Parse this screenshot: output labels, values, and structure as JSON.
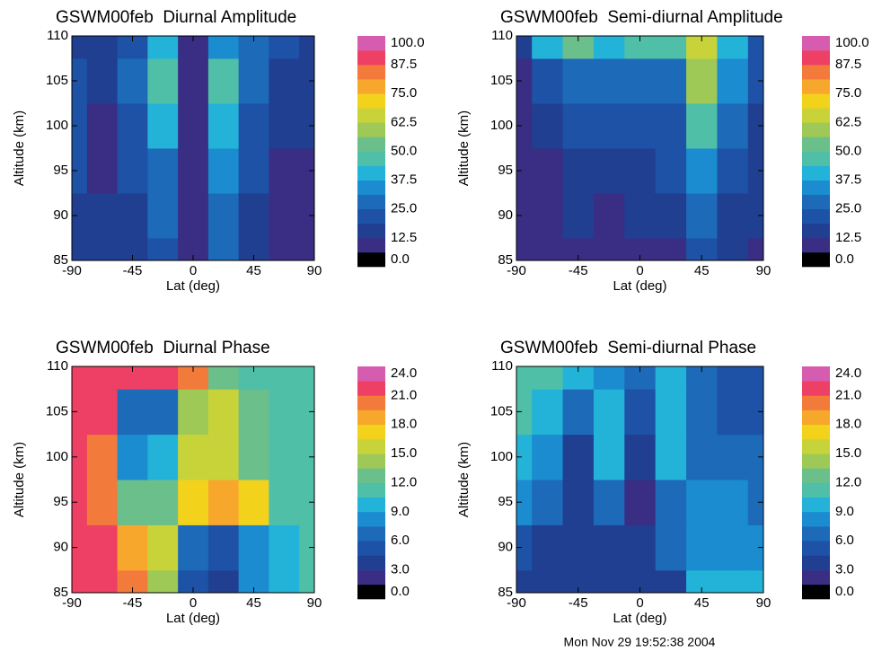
{
  "chart_data": [
    {
      "type": "heatmap",
      "title": "GSWM00feb  Diurnal Amplitude",
      "x_label": "Lat (deg)",
      "y_label": "Altitude (km)",
      "x": [
        -90,
        -67.5,
        -45,
        -22.5,
        0,
        22.5,
        45,
        67.5,
        90
      ],
      "y": [
        85,
        90,
        95,
        100,
        105,
        110
      ],
      "z": [
        [
          18,
          18,
          18,
          22,
          12,
          26,
          18,
          10,
          10
        ],
        [
          18,
          15,
          18,
          25,
          12,
          28,
          18,
          10,
          10
        ],
        [
          20,
          10,
          22,
          30,
          12,
          32,
          20,
          10,
          12
        ],
        [
          20,
          10,
          24,
          38,
          12,
          40,
          22,
          14,
          15
        ],
        [
          20,
          15,
          25,
          45,
          12,
          46,
          25,
          18,
          18
        ],
        [
          18,
          18,
          22,
          38,
          12,
          35,
          25,
          20,
          18
        ]
      ],
      "xlim": [
        -90,
        90
      ],
      "ylim": [
        85,
        110
      ],
      "xticks": [
        -90,
        -45,
        0,
        45,
        90
      ],
      "yticks": [
        85,
        90,
        95,
        100,
        105,
        110
      ],
      "zlim": [
        0,
        100
      ],
      "zticks": [
        {
          "value": 0,
          "label": "0.0"
        },
        12.5,
        {
          "value": 25,
          "label": "25.0"
        },
        37.5,
        {
          "value": 50,
          "label": "50.0"
        },
        62.5,
        {
          "value": 75,
          "label": "75.0"
        },
        87.5,
        {
          "value": 100,
          "label": "100.0"
        }
      ],
      "colors": [
        "#000000",
        "#3a2d84",
        "#203f91",
        "#1d52a6",
        "#1c6ab8",
        "#1a8ccf",
        "#23b3d8",
        "#4fbfa8",
        "#6bbf8a",
        "#9ec957",
        "#c8d33a",
        "#f3d21c",
        "#f7a82c",
        "#f27a3a",
        "#ee3f64",
        "#d65cb0"
      ]
    },
    {
      "type": "heatmap",
      "title": "GSWM00feb  Semi-diurnal Amplitude",
      "x_label": "Lat (deg)",
      "y_label": "Altitude (km)",
      "x": [
        -90,
        -67.5,
        -45,
        -22.5,
        0,
        22.5,
        45,
        67.5,
        90
      ],
      "y": [
        85,
        90,
        95,
        100,
        105,
        110
      ],
      "z": [
        [
          10,
          10,
          10,
          10,
          10,
          12,
          22,
          15,
          12
        ],
        [
          10,
          10,
          14,
          12,
          14,
          16,
          28,
          18,
          14
        ],
        [
          10,
          12,
          16,
          16,
          18,
          20,
          36,
          22,
          16
        ],
        [
          10,
          14,
          20,
          20,
          22,
          22,
          46,
          28,
          18
        ],
        [
          12,
          24,
          30,
          26,
          28,
          30,
          60,
          34,
          20
        ],
        [
          18,
          40,
          55,
          40,
          45,
          45,
          65,
          38,
          22
        ]
      ],
      "xlim": [
        -90,
        90
      ],
      "ylim": [
        85,
        110
      ],
      "xticks": [
        -90,
        -45,
        0,
        45,
        90
      ],
      "yticks": [
        85,
        90,
        95,
        100,
        105,
        110
      ],
      "zlim": [
        0,
        100
      ],
      "zticks": [
        {
          "value": 0,
          "label": "0.0"
        },
        12.5,
        {
          "value": 25,
          "label": "25.0"
        },
        37.5,
        {
          "value": 50,
          "label": "50.0"
        },
        62.5,
        {
          "value": 75,
          "label": "75.0"
        },
        87.5,
        {
          "value": 100,
          "label": "100.0"
        }
      ],
      "colors": [
        "#000000",
        "#3a2d84",
        "#203f91",
        "#1d52a6",
        "#1c6ab8",
        "#1a8ccf",
        "#23b3d8",
        "#4fbfa8",
        "#6bbf8a",
        "#9ec957",
        "#c8d33a",
        "#f3d21c",
        "#f7a82c",
        "#f27a3a",
        "#ee3f64",
        "#d65cb0"
      ]
    },
    {
      "type": "heatmap",
      "title": "GSWM00feb  Diurnal Phase",
      "x_label": "Lat (deg)",
      "y_label": "Altitude (km)",
      "x": [
        -90,
        -67.5,
        -45,
        -22.5,
        0,
        22.5,
        45,
        67.5,
        90
      ],
      "y": [
        85,
        90,
        95,
        100,
        105,
        110
      ],
      "z": [
        [
          21,
          21,
          20,
          14,
          5,
          4,
          8,
          10,
          11
        ],
        [
          21,
          21,
          19,
          15,
          6,
          5,
          8,
          10,
          11
        ],
        [
          21,
          20,
          12,
          12,
          17,
          18,
          17,
          11,
          11
        ],
        [
          21,
          20,
          8,
          9,
          16,
          16,
          13,
          11,
          11
        ],
        [
          21,
          21,
          6,
          7,
          14,
          15,
          12,
          11,
          11
        ],
        [
          21,
          21,
          21,
          21,
          20,
          12,
          11,
          11,
          11
        ]
      ],
      "xlim": [
        -90,
        90
      ],
      "ylim": [
        85,
        110
      ],
      "xticks": [
        -90,
        -45,
        0,
        45,
        90
      ],
      "yticks": [
        85,
        90,
        95,
        100,
        105,
        110
      ],
      "zlim": [
        0,
        24
      ],
      "zticks": [
        {
          "value": 0,
          "label": "0.0"
        },
        {
          "value": 3,
          "label": "3.0"
        },
        {
          "value": 6,
          "label": "6.0"
        },
        {
          "value": 9,
          "label": "9.0"
        },
        {
          "value": 12,
          "label": "12.0"
        },
        {
          "value": 15,
          "label": "15.0"
        },
        {
          "value": 18,
          "label": "18.0"
        },
        {
          "value": 21,
          "label": "21.0"
        },
        {
          "value": 24,
          "label": "24.0"
        }
      ],
      "colors": [
        "#000000",
        "#3a2d84",
        "#203f91",
        "#1d52a6",
        "#1c6ab8",
        "#1a8ccf",
        "#23b3d8",
        "#4fbfa8",
        "#6bbf8a",
        "#9ec957",
        "#c8d33a",
        "#f3d21c",
        "#f7a82c",
        "#f27a3a",
        "#ee3f64",
        "#d65cb0"
      ]
    },
    {
      "type": "heatmap",
      "title": "GSWM00feb  Semi-diurnal Phase",
      "x_label": "Lat (deg)",
      "y_label": "Altitude (km)",
      "x": [
        -90,
        -67.5,
        -45,
        -22.5,
        0,
        22.5,
        45,
        67.5,
        90
      ],
      "y": [
        85,
        90,
        95,
        100,
        105,
        110
      ],
      "z": [
        [
          3,
          3,
          3,
          4,
          3,
          3,
          9,
          9,
          9
        ],
        [
          5,
          4,
          3,
          3,
          4,
          6,
          8,
          8,
          8
        ],
        [
          8,
          6,
          4,
          7,
          2,
          7,
          8,
          8,
          7
        ],
        [
          10,
          8,
          4,
          9,
          4,
          9,
          7,
          7,
          7
        ],
        [
          11,
          10,
          7,
          9,
          5,
          10,
          6,
          5,
          5
        ],
        [
          11,
          11,
          9,
          8,
          6,
          10,
          6,
          5,
          5
        ]
      ],
      "xlim": [
        -90,
        90
      ],
      "ylim": [
        85,
        110
      ],
      "xticks": [
        -90,
        -45,
        0,
        45,
        90
      ],
      "yticks": [
        85,
        90,
        95,
        100,
        105,
        110
      ],
      "zlim": [
        0,
        24
      ],
      "zticks": [
        {
          "value": 0,
          "label": "0.0"
        },
        {
          "value": 3,
          "label": "3.0"
        },
        {
          "value": 6,
          "label": "6.0"
        },
        {
          "value": 9,
          "label": "9.0"
        },
        {
          "value": 12,
          "label": "12.0"
        },
        {
          "value": 15,
          "label": "15.0"
        },
        {
          "value": 18,
          "label": "18.0"
        },
        {
          "value": 21,
          "label": "21.0"
        },
        {
          "value": 24,
          "label": "24.0"
        }
      ],
      "colors": [
        "#000000",
        "#3a2d84",
        "#203f91",
        "#1d52a6",
        "#1c6ab8",
        "#1a8ccf",
        "#23b3d8",
        "#4fbfa8",
        "#6bbf8a",
        "#9ec957",
        "#c8d33a",
        "#f3d21c",
        "#f7a82c",
        "#f27a3a",
        "#ee3f64",
        "#d65cb0"
      ]
    }
  ],
  "timestamp": "Mon Nov 29 19:52:38 2004"
}
